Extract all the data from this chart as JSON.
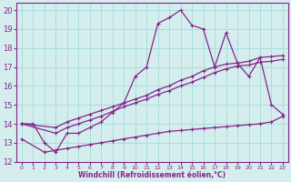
{
  "bg_color": "#d4eeee",
  "grid_color": "#aadddd",
  "line_color": "#882288",
  "xlabel": "Windchill (Refroidissement éolien,°C)",
  "xlim": [
    -0.5,
    23.5
  ],
  "ylim": [
    12,
    20.4
  ],
  "yticks": [
    12,
    13,
    14,
    15,
    16,
    17,
    18,
    19,
    20
  ],
  "xticks": [
    0,
    1,
    2,
    3,
    4,
    5,
    6,
    7,
    8,
    9,
    10,
    11,
    12,
    13,
    14,
    15,
    16,
    17,
    18,
    19,
    20,
    21,
    22,
    23
  ],
  "curve_x": [
    0,
    1,
    2,
    3,
    4,
    5,
    6,
    7,
    8,
    9,
    10,
    11,
    12,
    13,
    14,
    15,
    16,
    17,
    18,
    19,
    20,
    21,
    22,
    23
  ],
  "curve_y": [
    14.0,
    14.0,
    13.0,
    12.5,
    13.5,
    13.5,
    13.8,
    14.1,
    14.6,
    15.1,
    16.5,
    17.0,
    19.3,
    19.6,
    20.0,
    19.2,
    19.0,
    17.0,
    18.8,
    17.2,
    16.5,
    17.5,
    15.0,
    14.5
  ],
  "line_upper_x": [
    0,
    3,
    4,
    5,
    6,
    7,
    8,
    9,
    10,
    11,
    12,
    13,
    14,
    15,
    16,
    17,
    18,
    19,
    20,
    21,
    22,
    23
  ],
  "line_upper_y": [
    14.0,
    13.8,
    14.1,
    14.3,
    14.5,
    14.7,
    14.9,
    15.1,
    15.3,
    15.5,
    15.8,
    16.0,
    16.3,
    16.5,
    16.8,
    17.0,
    17.15,
    17.2,
    17.3,
    17.5,
    17.55,
    17.6
  ],
  "line_mid_x": [
    0,
    3,
    4,
    5,
    6,
    7,
    8,
    9,
    10,
    11,
    12,
    13,
    14,
    15,
    16,
    17,
    18,
    19,
    20,
    21,
    22,
    23
  ],
  "line_mid_y": [
    14.0,
    13.5,
    13.8,
    14.0,
    14.2,
    14.4,
    14.65,
    14.9,
    15.1,
    15.3,
    15.55,
    15.75,
    16.0,
    16.2,
    16.45,
    16.7,
    16.9,
    17.05,
    17.1,
    17.25,
    17.3,
    17.4
  ],
  "line_low_x": [
    0,
    2,
    3,
    4,
    5,
    6,
    7,
    8,
    9,
    10,
    11,
    12,
    13,
    14,
    15,
    16,
    17,
    18,
    19,
    20,
    21,
    22,
    23
  ],
  "line_low_y": [
    13.2,
    12.5,
    12.6,
    12.7,
    12.8,
    12.9,
    13.0,
    13.1,
    13.2,
    13.3,
    13.4,
    13.5,
    13.6,
    13.65,
    13.7,
    13.75,
    13.8,
    13.85,
    13.9,
    13.95,
    14.0,
    14.1,
    14.4
  ]
}
